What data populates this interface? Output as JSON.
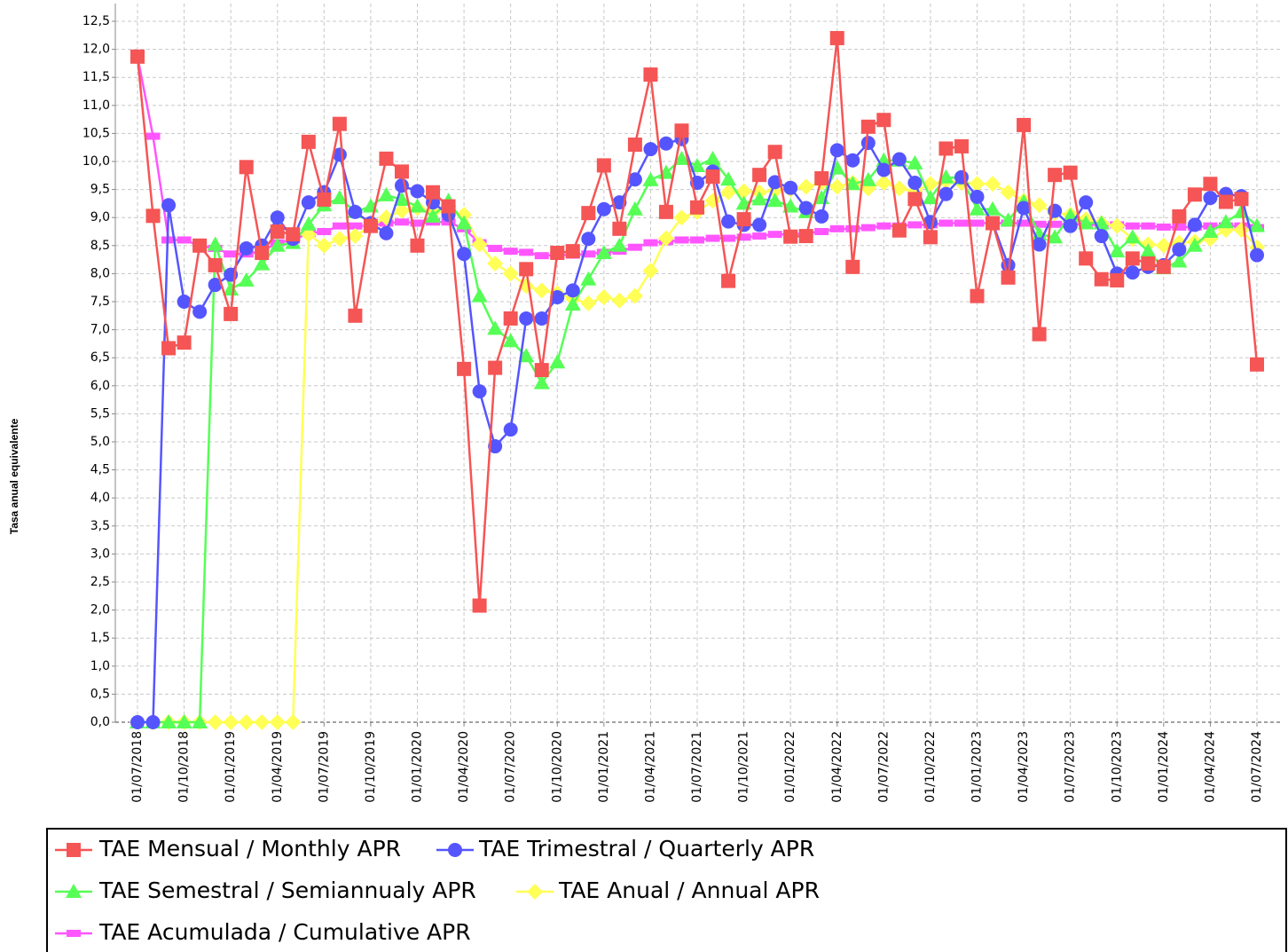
{
  "chart_data": {
    "type": "line",
    "y_label": "Tasa anual equivalente",
    "categories": [
      "01/07/2018",
      null,
      null,
      "01/10/2018",
      null,
      null,
      "01/01/2019",
      null,
      null,
      "01/04/2019",
      null,
      null,
      "01/07/2019",
      null,
      null,
      "01/10/2019",
      null,
      null,
      "01/01/2020",
      null,
      null,
      "01/04/2020",
      null,
      null,
      "01/07/2020",
      null,
      null,
      "01/10/2020",
      null,
      null,
      "01/01/2021",
      null,
      null,
      "01/04/2021",
      null,
      null,
      "01/07/2021",
      null,
      null,
      "01/10/2021",
      null,
      null,
      "01/01/2022",
      null,
      null,
      "01/04/2022",
      null,
      null,
      "01/07/2022",
      null,
      null,
      "01/10/2022",
      null,
      null,
      "01/01/2023",
      null,
      null,
      "01/04/2023",
      null,
      null,
      "01/07/2023",
      null,
      null,
      "01/10/2023",
      null,
      null,
      "01/01/2024",
      null,
      null,
      "01/04/2024",
      null,
      null,
      "01/07/2024"
    ],
    "ylim": [
      0,
      12.5
    ],
    "yticks": [
      {
        "value": 0,
        "label": "0,0"
      },
      {
        "value": 0.5,
        "label": "0,5"
      },
      {
        "value": 1,
        "label": "1,0"
      },
      {
        "value": 1.5,
        "label": "1,5"
      },
      {
        "value": 2,
        "label": "2,0"
      },
      {
        "value": 2.5,
        "label": "2,5"
      },
      {
        "value": 3,
        "label": "3,0"
      },
      {
        "value": 3.5,
        "label": "3,5"
      },
      {
        "value": 4,
        "label": "4,0"
      },
      {
        "value": 4.5,
        "label": "4,5"
      },
      {
        "value": 5,
        "label": "5,0"
      },
      {
        "value": 5.5,
        "label": "5,5"
      },
      {
        "value": 6,
        "label": "6,0"
      },
      {
        "value": 6.5,
        "label": "6,5"
      },
      {
        "value": 7,
        "label": "7,0"
      },
      {
        "value": 7.5,
        "label": "7,5"
      },
      {
        "value": 8,
        "label": "8,0"
      },
      {
        "value": 8.5,
        "label": "8,5"
      },
      {
        "value": 9,
        "label": "9,0"
      },
      {
        "value": 9.5,
        "label": "9,5"
      },
      {
        "value": 10,
        "label": "10,0"
      },
      {
        "value": 10.5,
        "label": "10,5"
      },
      {
        "value": 11,
        "label": "11,0"
      },
      {
        "value": 11.5,
        "label": "11,5"
      },
      {
        "value": 12,
        "label": "12,0"
      },
      {
        "value": 12.5,
        "label": "12,5"
      }
    ],
    "grid": true,
    "series": [
      {
        "name": "TAE Mensual / Monthly APR",
        "color": "#f55555",
        "marker": "square",
        "values": [
          11.87,
          9.03,
          6.67,
          6.77,
          8.5,
          8.15,
          7.28,
          9.9,
          8.37,
          8.75,
          8.7,
          10.35,
          9.32,
          10.67,
          7.25,
          8.85,
          10.05,
          9.82,
          8.5,
          9.45,
          9.2,
          6.3,
          2.08,
          6.32,
          7.2,
          8.08,
          6.28,
          8.37,
          8.4,
          9.08,
          9.93,
          8.8,
          10.3,
          11.55,
          9.1,
          10.55,
          9.18,
          9.73,
          7.87,
          8.97,
          9.76,
          10.17,
          8.66,
          8.67,
          9.7,
          12.2,
          8.12,
          10.62,
          10.74,
          8.77,
          9.33,
          8.65,
          10.23,
          10.27,
          7.6,
          8.9,
          7.93,
          10.65,
          6.92,
          9.76,
          9.8,
          8.27,
          7.9,
          7.88,
          8.27,
          8.18,
          8.12,
          9.02,
          9.41,
          9.6,
          9.28,
          9.33,
          6.38
        ]
      },
      {
        "name": "TAE Trimestral / Quarterly APR",
        "color": "#5555ff",
        "marker": "circle",
        "values": [
          0,
          0,
          9.22,
          7.5,
          7.32,
          7.8,
          7.98,
          8.45,
          8.5,
          9.0,
          8.62,
          9.27,
          9.45,
          10.12,
          9.1,
          8.9,
          8.72,
          9.57,
          9.47,
          9.27,
          9.05,
          8.35,
          5.9,
          4.92,
          5.22,
          7.2,
          7.2,
          7.58,
          7.7,
          8.62,
          9.15,
          9.27,
          9.68,
          10.22,
          10.32,
          10.4,
          9.62,
          9.82,
          8.93,
          8.87,
          8.87,
          9.63,
          9.53,
          9.17,
          9.02,
          10.2,
          10.02,
          10.33,
          9.85,
          10.04,
          9.62,
          8.92,
          9.42,
          9.72,
          9.37,
          8.9,
          8.15,
          9.17,
          8.52,
          9.12,
          8.85,
          9.27,
          8.67,
          8.0,
          8.02,
          8.12,
          8.15,
          8.43,
          8.87,
          9.35,
          9.42,
          9.38,
          8.33
        ]
      },
      {
        "name": "TAE Semestral / Semiannualy APR",
        "color": "#55ff55",
        "marker": "triangle",
        "values": [
          0,
          0,
          0,
          0,
          0,
          8.52,
          7.72,
          7.88,
          8.17,
          8.5,
          8.55,
          8.88,
          9.22,
          9.35,
          9.1,
          9.2,
          9.4,
          9.32,
          9.2,
          9.02,
          9.3,
          8.9,
          7.6,
          7.02,
          6.8,
          6.53,
          6.05,
          6.42,
          7.45,
          7.9,
          8.37,
          8.5,
          9.15,
          9.67,
          9.8,
          10.05,
          9.92,
          10.05,
          9.68,
          9.25,
          9.33,
          9.3,
          9.2,
          9.1,
          9.35,
          9.88,
          9.6,
          9.67,
          10.02,
          10.02,
          9.97,
          9.35,
          9.72,
          9.7,
          9.15,
          9.15,
          8.95,
          9.28,
          8.7,
          8.65,
          9.03,
          8.9,
          8.9,
          8.4,
          8.65,
          8.4,
          8.1,
          8.22,
          8.5,
          8.75,
          8.92,
          9.1,
          8.85
        ]
      },
      {
        "name": "TAE Anual / Annual APR",
        "color": "#ffff55",
        "marker": "diamond",
        "values": [
          0,
          0,
          0,
          0,
          0,
          0,
          0,
          0,
          0,
          0,
          0,
          8.7,
          8.5,
          8.62,
          8.67,
          8.85,
          9.0,
          9.12,
          9.17,
          9.1,
          9.1,
          9.05,
          8.52,
          8.18,
          8.0,
          7.78,
          7.7,
          7.65,
          7.55,
          7.47,
          7.58,
          7.52,
          7.6,
          8.05,
          8.63,
          9.0,
          9.1,
          9.3,
          9.45,
          9.47,
          9.45,
          9.48,
          9.5,
          9.55,
          9.62,
          9.55,
          9.62,
          9.52,
          9.62,
          9.52,
          9.47,
          9.6,
          9.65,
          9.62,
          9.6,
          9.6,
          9.45,
          9.3,
          9.22,
          9.08,
          9.05,
          8.97,
          8.9,
          8.85,
          8.62,
          8.52,
          8.5,
          8.55,
          8.57,
          8.62,
          8.78,
          8.78,
          8.47
        ]
      },
      {
        "name": "TAE Acumulada / Cumulative APR",
        "color": "#ff55ff",
        "marker": "rect",
        "values": [
          11.87,
          10.45,
          8.6,
          8.6,
          8.5,
          8.45,
          8.35,
          8.35,
          8.4,
          8.55,
          8.6,
          8.72,
          8.75,
          8.85,
          8.85,
          8.85,
          8.9,
          8.92,
          8.9,
          8.92,
          8.92,
          8.8,
          8.55,
          8.45,
          8.4,
          8.38,
          8.32,
          8.33,
          8.33,
          8.35,
          8.38,
          8.4,
          8.47,
          8.55,
          8.57,
          8.6,
          8.6,
          8.63,
          8.63,
          8.65,
          8.67,
          8.7,
          8.7,
          8.72,
          8.75,
          8.8,
          8.8,
          8.82,
          8.85,
          8.85,
          8.87,
          8.87,
          8.9,
          8.9,
          8.9,
          8.9,
          8.9,
          8.9,
          8.88,
          8.88,
          8.88,
          8.88,
          8.87,
          8.87,
          8.85,
          8.85,
          8.83,
          8.83,
          8.83,
          8.85,
          8.85,
          8.85,
          8.82
        ]
      }
    ]
  }
}
